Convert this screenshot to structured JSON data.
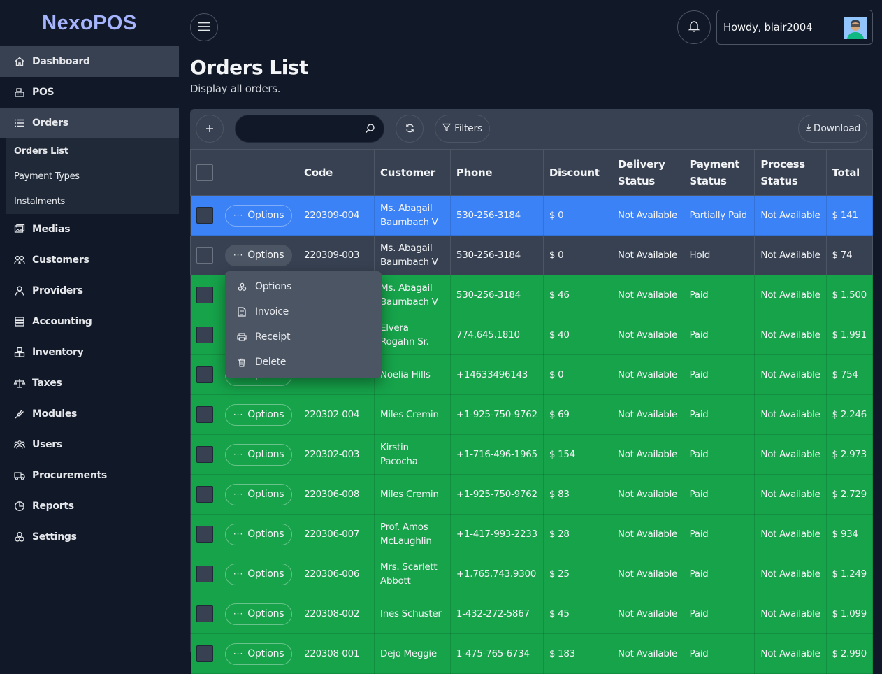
{
  "app": {
    "name": "NexoPOS"
  },
  "sidebar": {
    "items": [
      {
        "label": "Dashboard",
        "icon": "home-icon"
      },
      {
        "label": "POS",
        "icon": "cash-register-icon"
      },
      {
        "label": "Orders",
        "icon": "list-icon"
      },
      {
        "label": "Medias",
        "icon": "images-icon"
      },
      {
        "label": "Customers",
        "icon": "users-icon"
      },
      {
        "label": "Providers",
        "icon": "user-icon"
      },
      {
        "label": "Accounting",
        "icon": "stack-icon"
      },
      {
        "label": "Inventory",
        "icon": "boxes-icon"
      },
      {
        "label": "Taxes",
        "icon": "scale-icon"
      },
      {
        "label": "Modules",
        "icon": "plug-icon"
      },
      {
        "label": "Users",
        "icon": "user-group-icon"
      },
      {
        "label": "Procurements",
        "icon": "truck-icon"
      },
      {
        "label": "Reports",
        "icon": "pie-chart-icon"
      },
      {
        "label": "Settings",
        "icon": "cogs-icon"
      }
    ],
    "orders_submenu": [
      "Orders List",
      "Payment Types",
      "Instalments"
    ]
  },
  "header": {
    "greeting": "Howdy, blair2004"
  },
  "page": {
    "title": "Orders List",
    "description": "Display all orders."
  },
  "toolbar": {
    "search_value": "",
    "filters_label": "Filters",
    "download_label": "Download"
  },
  "table": {
    "columns": [
      "Code",
      "Customer",
      "Phone",
      "Discount",
      "Delivery Status",
      "Payment Status",
      "Process Status",
      "Total"
    ],
    "option_label": "Options",
    "rows": [
      {
        "code": "220309-004",
        "customer": "Ms. Abagail Baumbach V",
        "phone": "530-256-3184",
        "discount": "$ 0",
        "delivery": "Not Available",
        "payment": "Partially Paid",
        "process": "Not Available",
        "total": "$ 141"
      },
      {
        "code": "220309-003",
        "customer": "Ms. Abagail Baumbach V",
        "phone": "530-256-3184",
        "discount": "$ 0",
        "delivery": "Not Available",
        "payment": "Hold",
        "process": "Not Available",
        "total": "$ 74"
      },
      {
        "code": "",
        "customer": "Ms. Abagail Baumbach V",
        "phone": "530-256-3184",
        "discount": "$ 46",
        "delivery": "Not Available",
        "payment": "Paid",
        "process": "Not Available",
        "total": "$ 1.500"
      },
      {
        "code": "",
        "customer": "Elvera Rogahn Sr.",
        "phone": "774.645.1810",
        "discount": "$ 40",
        "delivery": "Not Available",
        "payment": "Paid",
        "process": "Not Available",
        "total": "$ 1.991"
      },
      {
        "code": "",
        "customer": "Noelia Hills",
        "phone": "+14633496143",
        "discount": "$ 0",
        "delivery": "Not Available",
        "payment": "Paid",
        "process": "Not Available",
        "total": "$ 754"
      },
      {
        "code": "220302-004",
        "customer": "Miles Cremin",
        "phone": "+1-925-750-9762",
        "discount": "$ 69",
        "delivery": "Not Available",
        "payment": "Paid",
        "process": "Not Available",
        "total": "$ 2.246"
      },
      {
        "code": "220302-003",
        "customer": "Kirstin Pacocha",
        "phone": "+1-716-496-1965",
        "discount": "$ 154",
        "delivery": "Not Available",
        "payment": "Paid",
        "process": "Not Available",
        "total": "$ 2.973"
      },
      {
        "code": "220306-008",
        "customer": "Miles Cremin",
        "phone": "+1-925-750-9762",
        "discount": "$ 83",
        "delivery": "Not Available",
        "payment": "Paid",
        "process": "Not Available",
        "total": "$ 2.729"
      },
      {
        "code": "220306-007",
        "customer": "Prof. Amos McLaughlin",
        "phone": "+1-417-993-2233",
        "discount": "$ 28",
        "delivery": "Not Available",
        "payment": "Paid",
        "process": "Not Available",
        "total": "$ 934"
      },
      {
        "code": "220306-006",
        "customer": "Mrs. Scarlett Abbott",
        "phone": "+1.765.743.9300",
        "discount": "$ 25",
        "delivery": "Not Available",
        "payment": "Paid",
        "process": "Not Available",
        "total": "$ 1.249"
      },
      {
        "code": "220308-002",
        "customer": "Ines Schuster",
        "phone": "1-432-272-5867",
        "discount": "$ 45",
        "delivery": "Not Available",
        "payment": "Paid",
        "process": "Not Available",
        "total": "$ 1.099"
      },
      {
        "code": "220308-001",
        "customer": "Dejo Meggie",
        "phone": "1-475-765-6734",
        "discount": "$ 183",
        "delivery": "Not Available",
        "payment": "Paid",
        "process": "Not Available",
        "total": "$ 2.990"
      }
    ]
  },
  "dropdown": {
    "items": [
      {
        "label": "Options",
        "icon": "cogs-icon"
      },
      {
        "label": "Invoice",
        "icon": "invoice-icon"
      },
      {
        "label": "Receipt",
        "icon": "printer-icon"
      },
      {
        "label": "Delete",
        "icon": "trash-icon"
      }
    ]
  },
  "colors": {
    "sidebar_bg": "#111827",
    "active_item": "#374151",
    "selected_row": "#3b82f6",
    "paid_row": "#16a34a",
    "hold_row": "#374151",
    "logo": "#a5b4fc"
  }
}
